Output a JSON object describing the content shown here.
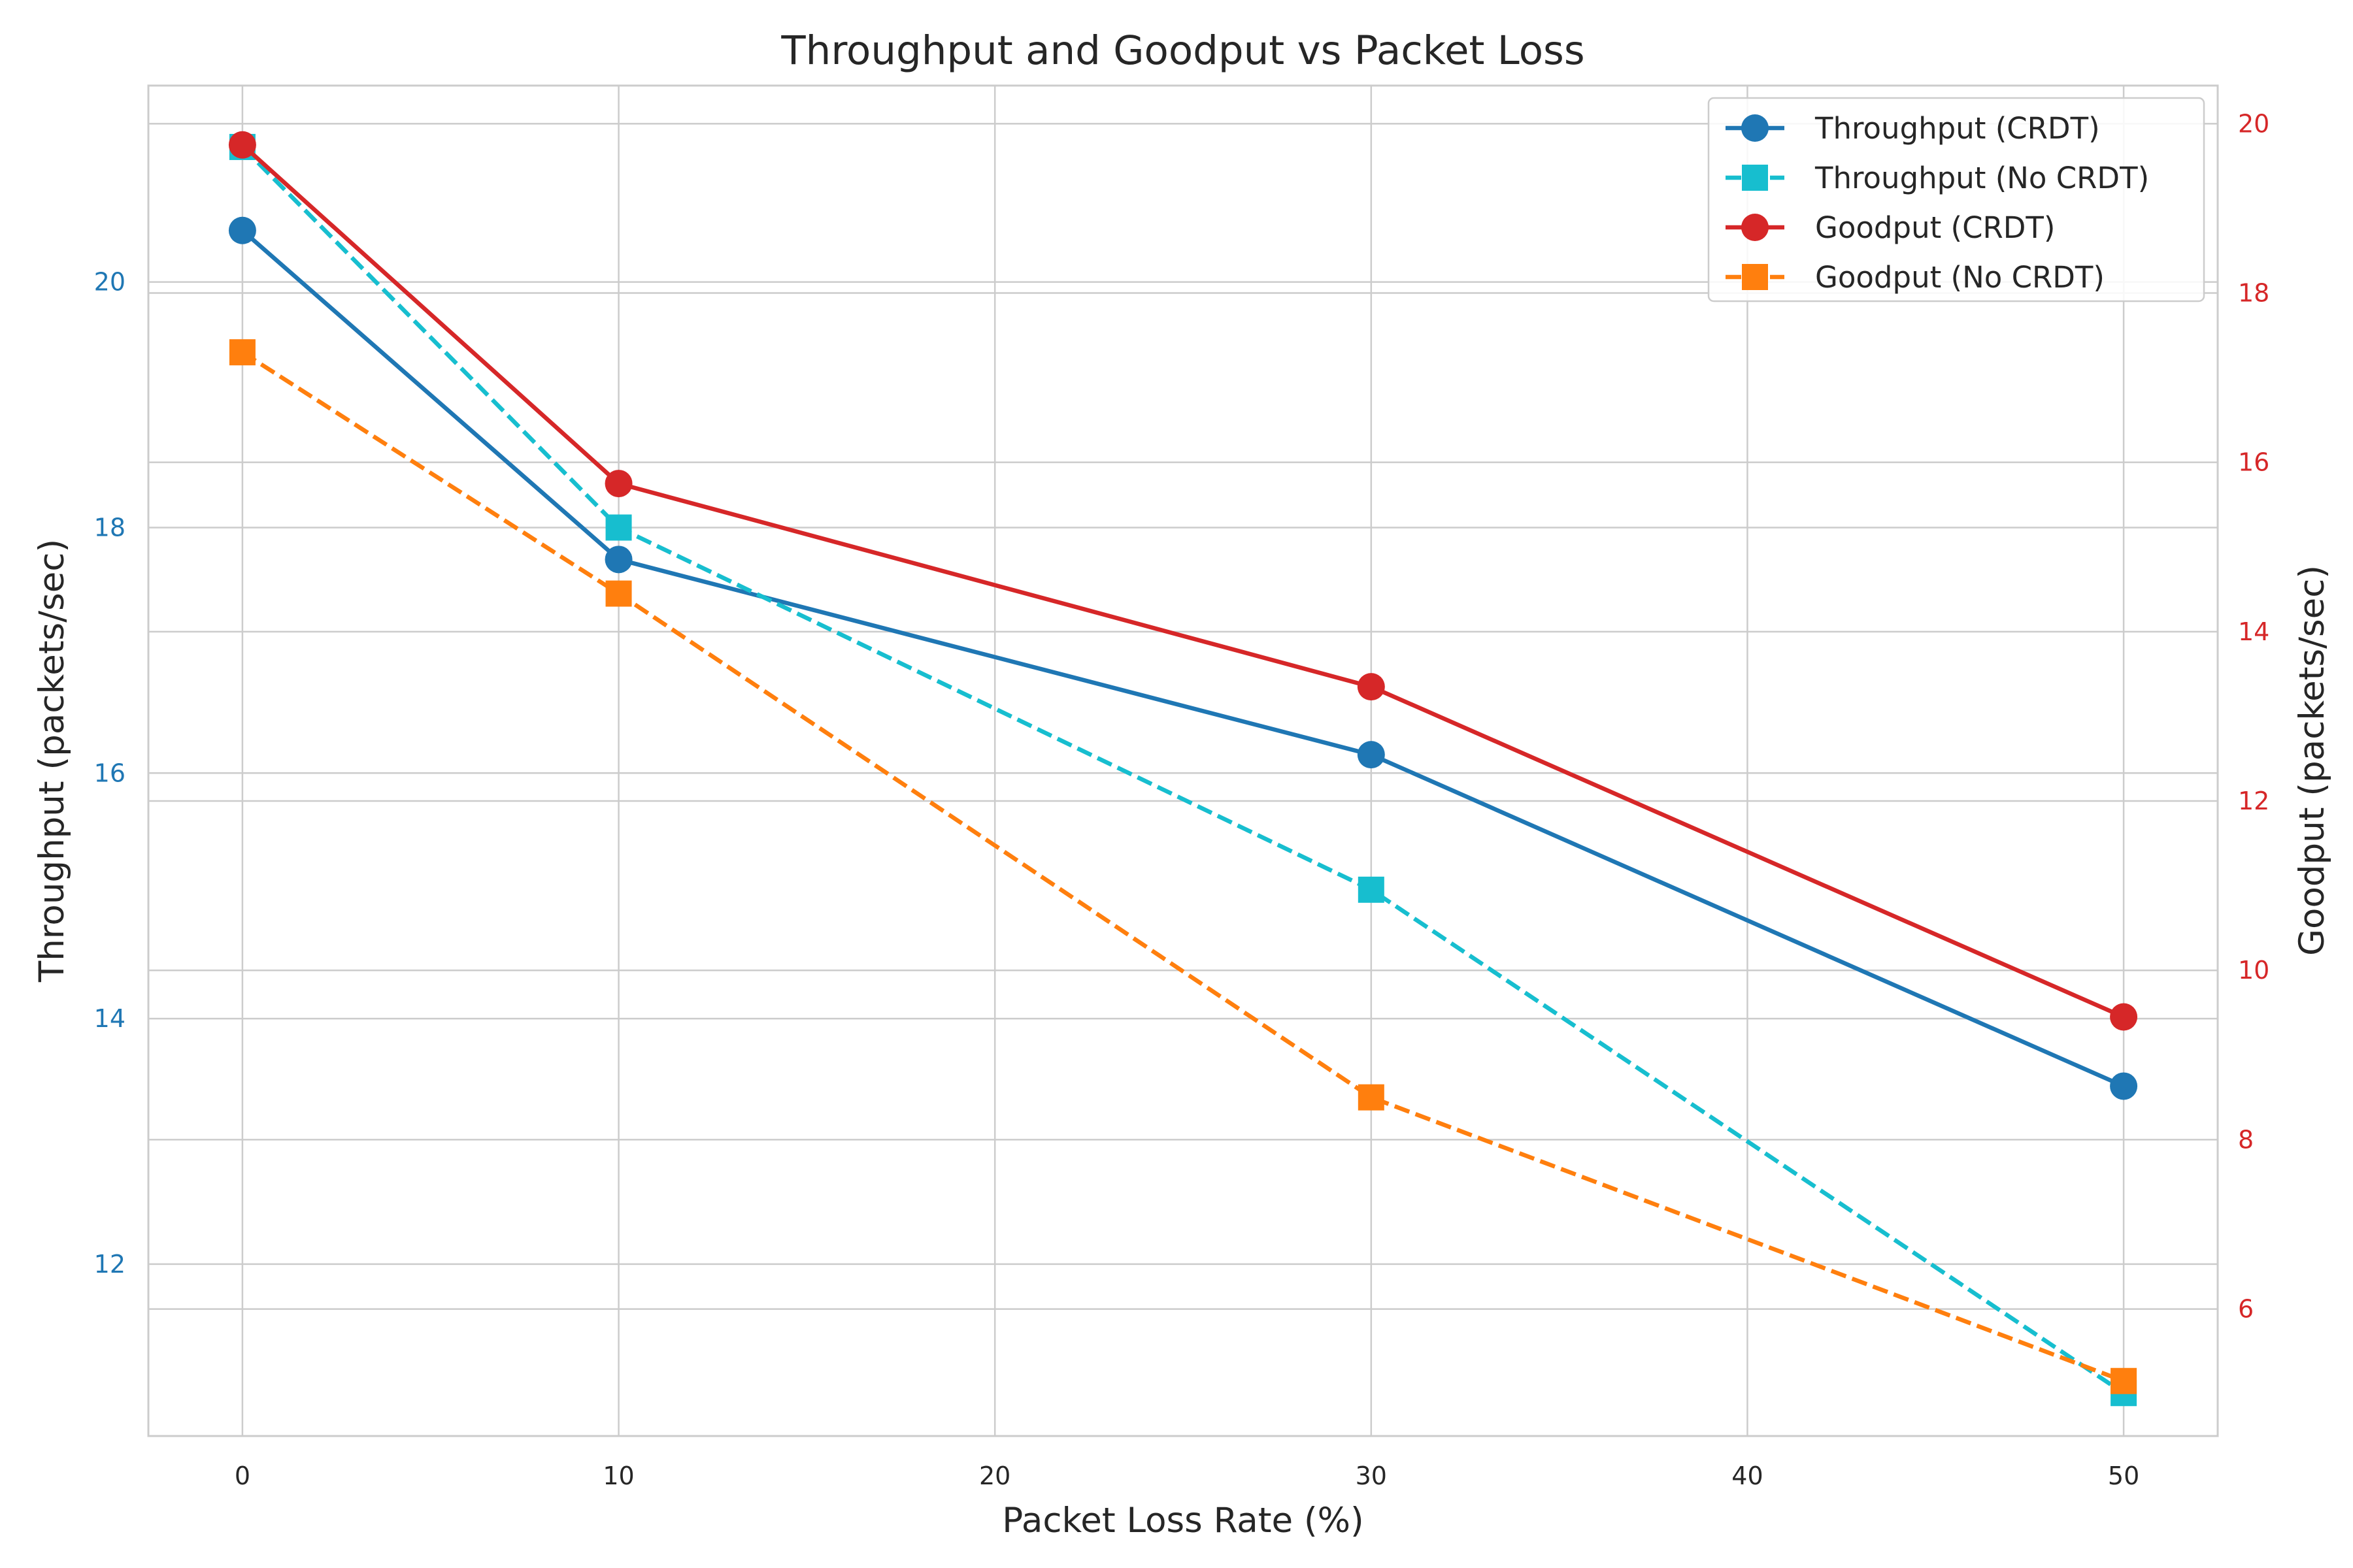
{
  "chart_data": {
    "type": "line",
    "title": "Throughput and Goodput vs Packet Loss",
    "xlabel": "Packet Loss Rate (%)",
    "ylabel_left": "Throughput (packets/sec)",
    "ylabel_right": "Goodput (packets/sec)",
    "x": [
      0,
      10,
      30,
      50
    ],
    "xlim": [
      -2.5,
      52.5
    ],
    "ylim_left": [
      10.6,
      21.6
    ],
    "ylim_right": [
      4.5,
      20.45
    ],
    "xticks": [
      0,
      10,
      20,
      30,
      40,
      50
    ],
    "yticks_left": [
      12,
      14,
      16,
      18,
      20
    ],
    "yticks_right": [
      6,
      8,
      10,
      12,
      14,
      16,
      18,
      20
    ],
    "grid": true,
    "legend_position": "top-right",
    "left_axis_color": "#1f77b4",
    "right_axis_color": "#d62728",
    "series": [
      {
        "name": "Throughput (CRDT)",
        "axis": "left",
        "color": "#1f77b4",
        "linestyle": "solid",
        "marker": "circle",
        "values": [
          20.42,
          17.74,
          16.15,
          13.45
        ]
      },
      {
        "name": "Throughput (No CRDT)",
        "axis": "left",
        "color": "#17becf",
        "linestyle": "dashed",
        "marker": "square",
        "values": [
          21.1,
          18.0,
          15.05,
          10.95
        ]
      },
      {
        "name": "Goodput (CRDT)",
        "axis": "right",
        "color": "#d62728",
        "linestyle": "solid",
        "marker": "circle",
        "values": [
          19.75,
          15.75,
          13.35,
          9.45
        ]
      },
      {
        "name": "Goodput (No CRDT)",
        "axis": "right",
        "color": "#ff7f0e",
        "linestyle": "dashed",
        "marker": "square",
        "values": [
          17.3,
          14.45,
          8.5,
          5.15
        ]
      }
    ]
  }
}
